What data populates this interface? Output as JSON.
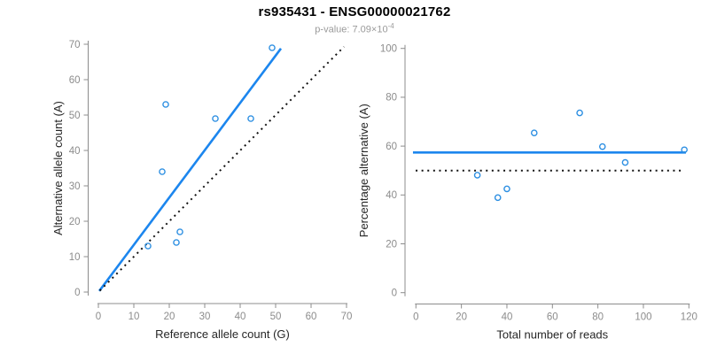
{
  "header": {
    "title": "rs935431 - ENSG00000021762",
    "subtitle_prefix": "p-value: ",
    "subtitle_mantissa": "7.09×10",
    "subtitle_exponent": "-4"
  },
  "colors": {
    "line_blue": "#1C86EE",
    "marker_blue": "#2D8FE2",
    "dotted_black": "#111111",
    "axis_gray": "#8c8c8c",
    "tick_label_gray": "#8c8c8c",
    "axis_title_dark": "#262626"
  },
  "chart_data": [
    {
      "type": "scatter",
      "xlabel": "Reference allele count (G)",
      "ylabel": "Alternative allele count (A)",
      "xlim": [
        0,
        70
      ],
      "ylim": [
        0,
        70
      ],
      "xticks": [
        0,
        10,
        20,
        30,
        40,
        50,
        60,
        70
      ],
      "yticks": [
        0,
        10,
        20,
        30,
        40,
        50,
        60,
        70
      ],
      "grid": false,
      "points": [
        [
          14,
          13
        ],
        [
          18,
          34
        ],
        [
          19,
          53
        ],
        [
          22,
          14
        ],
        [
          23,
          17
        ],
        [
          33,
          49
        ],
        [
          43,
          49
        ],
        [
          49,
          69
        ]
      ],
      "lines": [
        {
          "name": "fit-line",
          "style": "solid",
          "color": "line_blue",
          "x1": 0.25,
          "y1": 0.3,
          "x2": 51.5,
          "y2": 68.8
        },
        {
          "name": "identity-line",
          "style": "dotted",
          "color": "dotted_black",
          "x1": 0.4,
          "y1": 0.4,
          "x2": 69.3,
          "y2": 69.3
        }
      ]
    },
    {
      "type": "scatter",
      "xlabel": "Total number of reads",
      "ylabel": "Percentage alternative (A)",
      "xlim": [
        0,
        120
      ],
      "ylim": [
        0,
        100
      ],
      "xticks": [
        0,
        20,
        40,
        60,
        80,
        100,
        120
      ],
      "yticks": [
        0,
        20,
        40,
        60,
        80,
        100
      ],
      "grid": false,
      "points": [
        [
          27,
          48.1
        ],
        [
          36,
          38.9
        ],
        [
          40,
          42.5
        ],
        [
          52,
          65.4
        ],
        [
          72,
          73.6
        ],
        [
          82,
          59.8
        ],
        [
          92,
          53.3
        ],
        [
          118,
          58.5
        ]
      ],
      "lines": [
        {
          "name": "mean-percentage-line",
          "style": "solid",
          "color": "line_blue",
          "x1": -1.3,
          "y1": 57.4,
          "x2": 118.7,
          "y2": 57.4
        },
        {
          "name": "fifty-percent-line",
          "style": "dotted",
          "color": "dotted_black",
          "x1": -0.1,
          "y1": 50,
          "x2": 117.2,
          "y2": 50
        }
      ]
    }
  ]
}
